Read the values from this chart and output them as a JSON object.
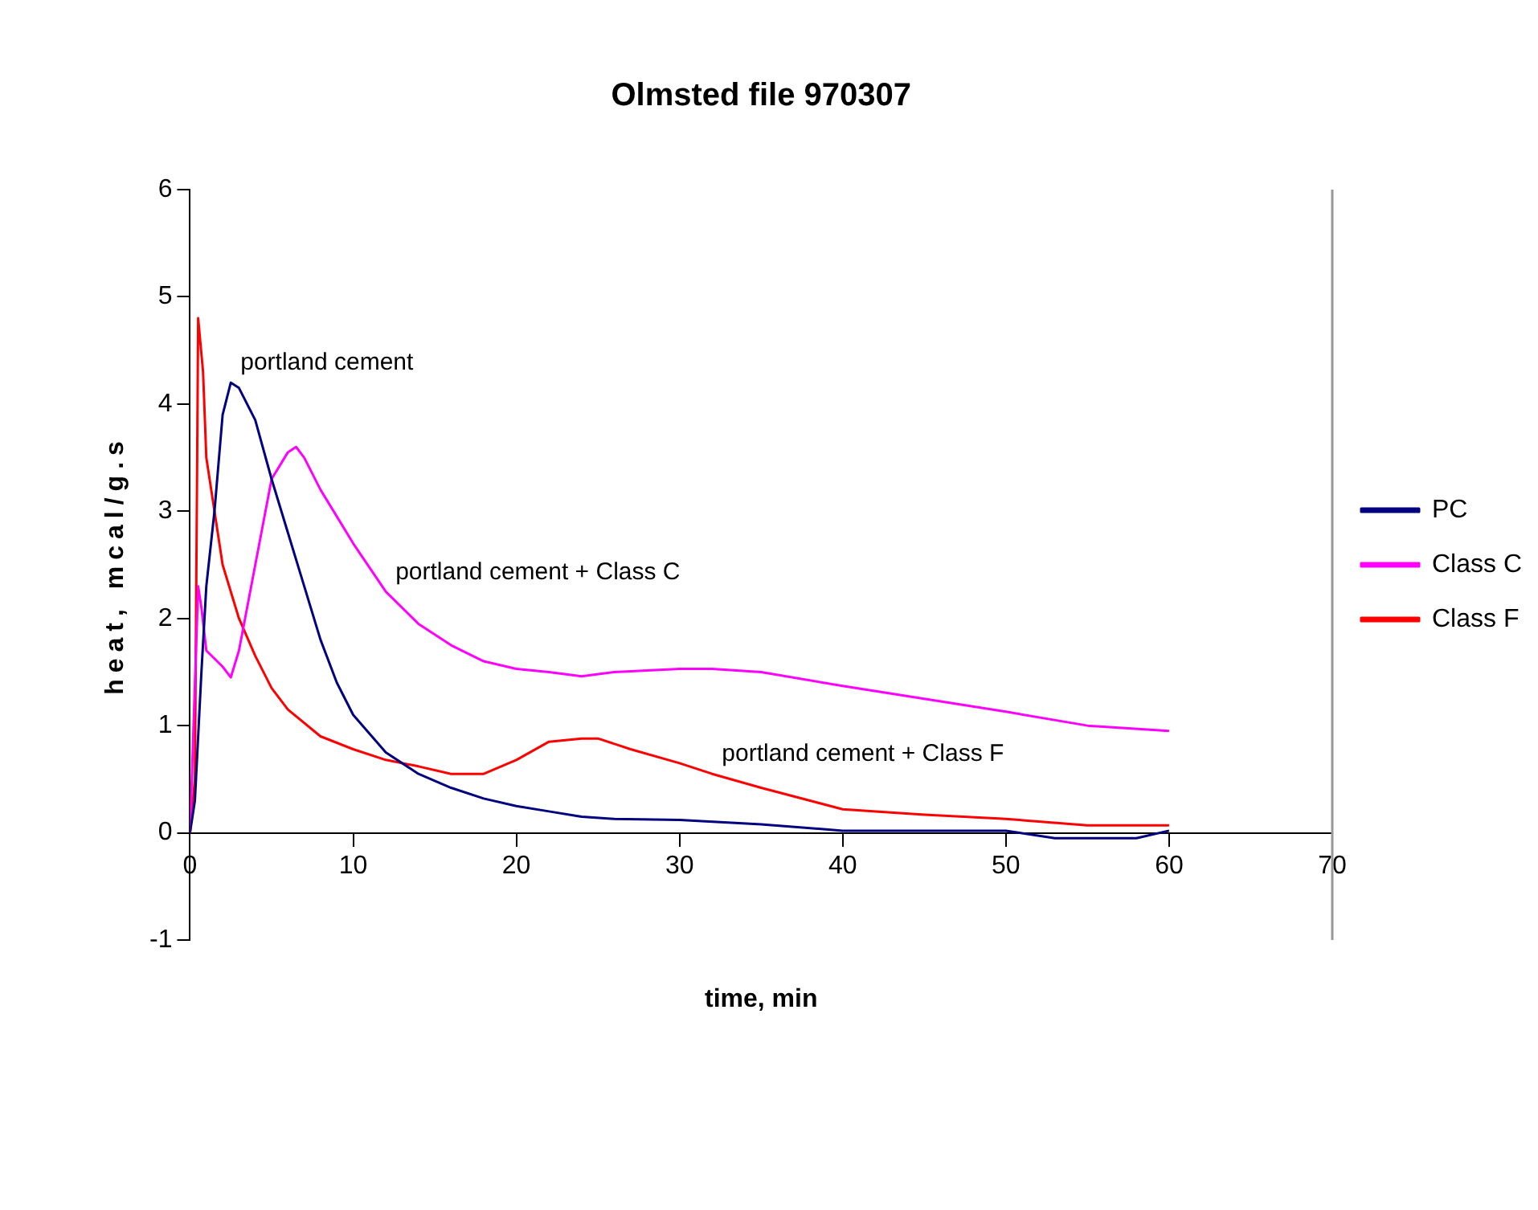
{
  "chart_data": {
    "type": "line",
    "title": "Olmsted file 970307",
    "xlabel": "time, min",
    "ylabel": "heat, mcal/g.s",
    "xlim": [
      0,
      70
    ],
    "xticks": [
      0,
      10,
      20,
      30,
      40,
      50,
      60,
      70
    ],
    "ylim": [
      -1,
      6
    ],
    "yticks": [
      -1,
      0,
      1,
      2,
      3,
      4,
      5,
      6
    ],
    "grid": false,
    "legend": "right",
    "marker": "none",
    "line_style": "solid",
    "series": [
      {
        "name": "PC",
        "color": "#000080",
        "x": [
          0,
          0.3,
          0.7,
          1,
          1.5,
          2,
          2.5,
          3,
          4,
          5,
          6,
          7,
          8,
          9,
          10,
          12,
          14,
          16,
          18,
          20,
          22,
          24,
          26,
          30,
          35,
          40,
          50,
          53,
          58,
          60
        ],
        "values": [
          0,
          0.3,
          1.5,
          2.3,
          3.0,
          3.9,
          4.2,
          4.15,
          3.85,
          3.3,
          2.8,
          2.3,
          1.8,
          1.4,
          1.1,
          0.75,
          0.55,
          0.42,
          0.32,
          0.25,
          0.2,
          0.15,
          0.13,
          0.12,
          0.08,
          0.02,
          0.02,
          -0.05,
          -0.05,
          0.02
        ]
      },
      {
        "name": "Class C",
        "color": "#ff00ff",
        "x": [
          0,
          0.5,
          0.7,
          1,
          2,
          2.5,
          3,
          4,
          5,
          6,
          6.5,
          7,
          8,
          10,
          12,
          14,
          16,
          18,
          20,
          22,
          24,
          26,
          30,
          32,
          35,
          40,
          45,
          50,
          55,
          60
        ],
        "values": [
          0,
          2.3,
          2.1,
          1.7,
          1.55,
          1.45,
          1.7,
          2.5,
          3.3,
          3.55,
          3.6,
          3.5,
          3.2,
          2.7,
          2.25,
          1.95,
          1.75,
          1.6,
          1.53,
          1.5,
          1.46,
          1.5,
          1.53,
          1.53,
          1.5,
          1.37,
          1.25,
          1.13,
          1.0,
          0.95
        ]
      },
      {
        "name": "Class F",
        "color": "#ff0000",
        "x": [
          0,
          0.3,
          0.5,
          0.8,
          1,
          1.5,
          2,
          3,
          4,
          5,
          6,
          8,
          10,
          12,
          14,
          16,
          18,
          20,
          22,
          24,
          25,
          27,
          30,
          32,
          35,
          40,
          45,
          50,
          55,
          60
        ],
        "values": [
          0,
          0.5,
          4.8,
          4.3,
          3.5,
          3.0,
          2.5,
          2.0,
          1.65,
          1.35,
          1.15,
          0.9,
          0.78,
          0.68,
          0.62,
          0.55,
          0.55,
          0.68,
          0.85,
          0.88,
          0.88,
          0.78,
          0.65,
          0.55,
          0.42,
          0.22,
          0.17,
          0.13,
          0.07,
          0.07
        ]
      }
    ],
    "annotations": [
      {
        "text": "portland cement",
        "x": 2.5,
        "y": 4.2
      },
      {
        "text": "portland cement + Class C",
        "x": 12,
        "y": 2.25
      },
      {
        "text": "portland cement + Class F",
        "x": 32,
        "y": 0.55
      }
    ]
  }
}
